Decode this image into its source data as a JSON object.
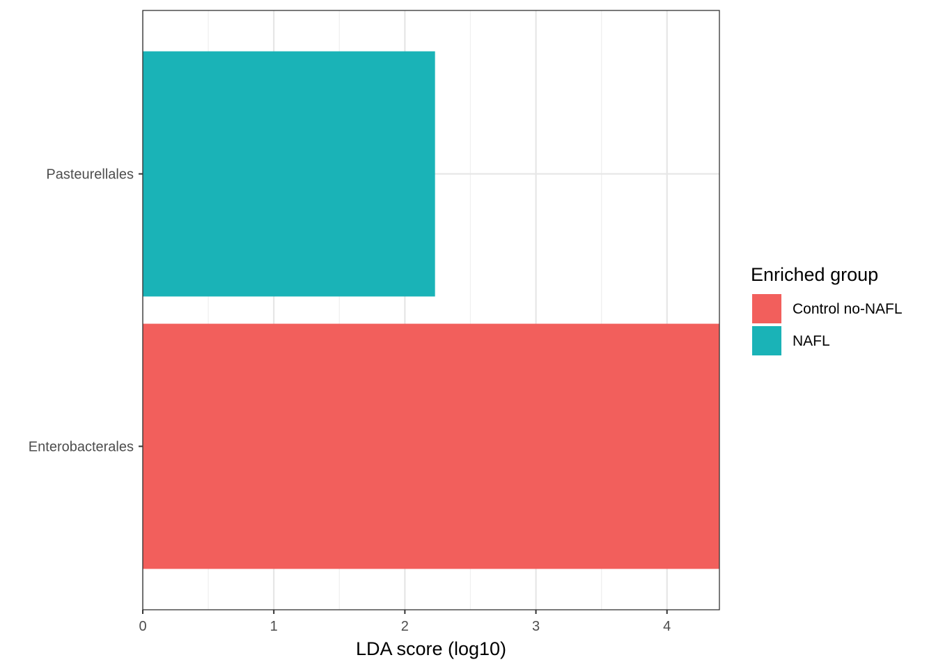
{
  "chart_data": {
    "type": "bar",
    "orientation": "horizontal",
    "categories": [
      "Pasteurellales",
      "Enterobacterales"
    ],
    "values": [
      2.23,
      4.4
    ],
    "groups": [
      "NAFL",
      "Control no-NAFL"
    ],
    "xlabel": "LDA score (log10)",
    "ylabel": "",
    "xlim": [
      0,
      4.4
    ],
    "x_ticks": [
      0,
      1,
      2,
      3,
      4
    ],
    "grid": true,
    "legend": {
      "title": "Enriched group",
      "placement": "right",
      "entries": [
        {
          "label": "Control no-NAFL",
          "color": "#F25F5C"
        },
        {
          "label": "NAFL",
          "color": "#1AB3B7"
        }
      ]
    }
  }
}
